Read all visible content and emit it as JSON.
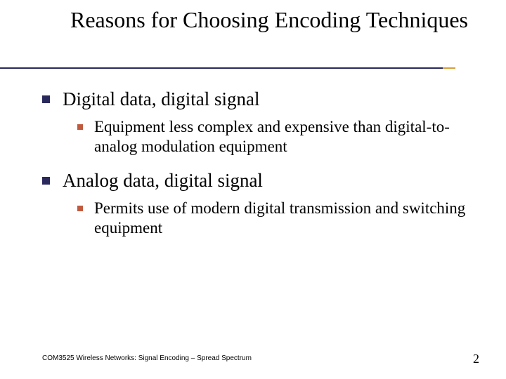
{
  "title": "Reasons for Choosing Encoding Techniques",
  "colors": {
    "title_underline": "#29295c",
    "title_underline_accent": "#d6a038",
    "bullet_l1": "#29295c",
    "bullet_l2": "#c05a3e",
    "text": "#000000",
    "background": "#ffffff"
  },
  "typography": {
    "title_fontsize": 32,
    "l1_fontsize": 27,
    "l2_fontsize": 23,
    "footer_fontsize": 10,
    "pagenum_fontsize": 18,
    "body_font": "Times New Roman",
    "footer_font": "Arial"
  },
  "items": [
    {
      "text": "Digital data, digital signal",
      "sub": [
        {
          "text": "Equipment less complex and expensive than digital-to-analog modulation equipment"
        }
      ]
    },
    {
      "text": "Analog data, digital signal",
      "sub": [
        {
          "text": "Permits use of modern digital transmission and switching equipment"
        }
      ]
    }
  ],
  "footer": "COM3525 Wireless Networks: Signal Encoding – Spread Spectrum",
  "page_number": "2"
}
